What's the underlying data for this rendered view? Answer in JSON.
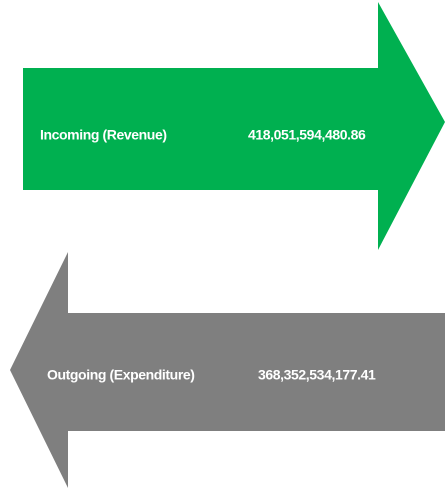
{
  "flows": [
    {
      "label": "Incoming (Revenue)",
      "value": "418,051,594,480.86"
    },
    {
      "label": "Outgoing (Expenditure)",
      "value": "368,352,534,177.41"
    }
  ]
}
